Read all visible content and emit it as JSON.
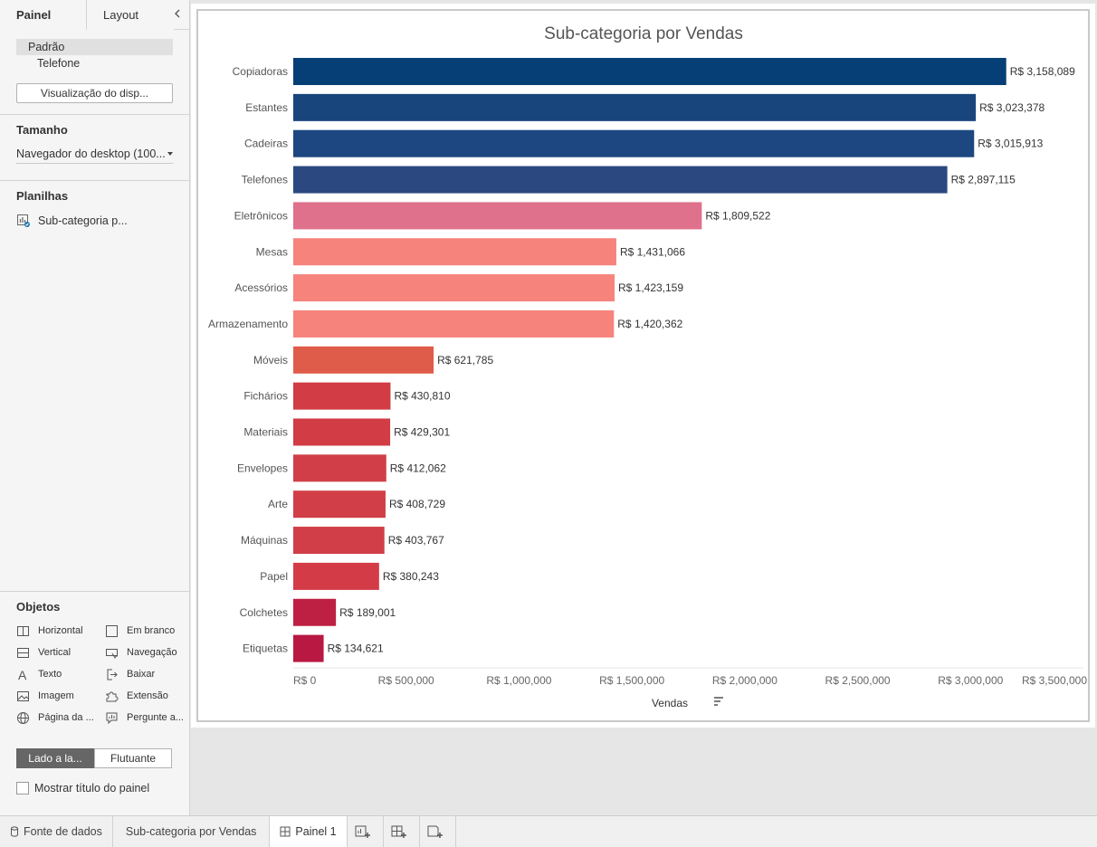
{
  "left_panel": {
    "tabs": [
      "Painel",
      "Layout"
    ],
    "devices": [
      "Padrão",
      "Telefone"
    ],
    "preview_button": "Visualização do disp...",
    "size_title": "Tamanho",
    "size_value": "Navegador do desktop (100...",
    "sheets_title": "Planilhas",
    "sheets": [
      "Sub-categoria p..."
    ],
    "objects_title": "Objetos",
    "objects": [
      {
        "label": "Horizontal",
        "icon": "horizontal-icon"
      },
      {
        "label": "Em branco",
        "icon": "blank-icon"
      },
      {
        "label": "Vertical",
        "icon": "vertical-icon"
      },
      {
        "label": "Navegação",
        "icon": "navigation-icon"
      },
      {
        "label": "Texto",
        "icon": "text-icon"
      },
      {
        "label": "Baixar",
        "icon": "download-icon"
      },
      {
        "label": "Imagem",
        "icon": "image-icon"
      },
      {
        "label": "Extensão",
        "icon": "extension-icon"
      },
      {
        "label": "Página da ...",
        "icon": "web-page-icon"
      },
      {
        "label": "Pergunte a...",
        "icon": "ask-data-icon"
      }
    ],
    "layout_toggle": [
      "Lado a la...",
      "Flutuante"
    ],
    "show_title_label": "Mostrar título do painel"
  },
  "bottom_bar": {
    "tabs": [
      "Fonte de dados",
      "Sub-categoria por Vendas",
      "Painel 1"
    ]
  },
  "chart_data": {
    "type": "bar",
    "orientation": "horizontal",
    "title": "Sub-categoria por Vendas",
    "xlabel": "Vendas",
    "ylabel": "",
    "xlim": [
      0,
      3500000
    ],
    "xticks": [
      0,
      500000,
      1000000,
      1500000,
      2000000,
      2500000,
      3000000,
      3500000
    ],
    "xtick_labels": [
      "R$ 0",
      "R$ 500,000",
      "R$ 1,000,000",
      "R$ 1,500,000",
      "R$ 2,000,000",
      "R$ 2,500,000",
      "R$ 3,000,000",
      "R$ 3,500,000"
    ],
    "categories": [
      "Copiadoras",
      "Estantes",
      "Cadeiras",
      "Telefones",
      "Eletrônicos",
      "Mesas",
      "Acessórios",
      "Armazenamento",
      "Móveis",
      "Fichários",
      "Materiais",
      "Envelopes",
      "Arte",
      "Máquinas",
      "Papel",
      "Colchetes",
      "Etiquetas"
    ],
    "values": [
      3158089,
      3023378,
      3015913,
      2897115,
      1809522,
      1431066,
      1423159,
      1420362,
      621785,
      430810,
      429301,
      412062,
      408729,
      403767,
      380243,
      189001,
      134621
    ],
    "value_labels": [
      "R$ 3,158,089",
      "R$ 3,023,378",
      "R$ 3,015,913",
      "R$ 2,897,115",
      "R$ 1,809,522",
      "R$ 1,431,066",
      "R$ 1,423,159",
      "R$ 1,420,362",
      "R$ 621,785",
      "R$ 430,810",
      "R$ 429,301",
      "R$ 412,062",
      "R$ 408,729",
      "R$ 403,767",
      "R$ 380,243",
      "R$ 189,001",
      "R$ 134,621"
    ],
    "colors": [
      "#053f75",
      "#19457d",
      "#1c4780",
      "#2b4880",
      "#e0718c",
      "#f6837c",
      "#f6837c",
      "#f6837c",
      "#e05c4a",
      "#d23c45",
      "#d23c45",
      "#d13e47",
      "#d13e47",
      "#d13e47",
      "#d33c47",
      "#bd2043",
      "#b81842"
    ],
    "grid": false,
    "sorted": "descending"
  }
}
